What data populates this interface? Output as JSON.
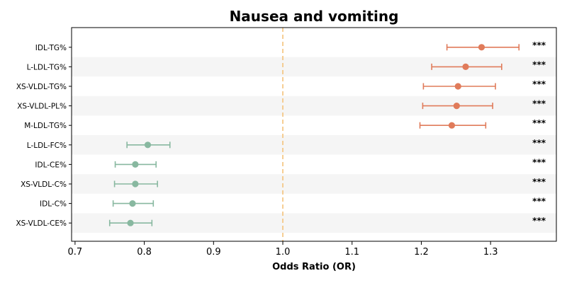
{
  "chart_data": {
    "type": "scatter",
    "title": "Nausea and vomiting",
    "xlabel": "Odds Ratio (OR)",
    "ylabel": "",
    "xlim": [
      0.695,
      1.395
    ],
    "xticks": [
      "0.7",
      "0.8",
      "0.9",
      "1.0",
      "1.1",
      "1.2",
      "1.3"
    ],
    "reference_line": 1.0,
    "grid": false,
    "colors": {
      "risk": "#e07b5a",
      "protective": "#88b8a0",
      "reference": "#f5c27a",
      "stripe": "#f5f5f5"
    },
    "rows": [
      {
        "label": "IDL-TG%",
        "or": 1.287,
        "lower": 1.237,
        "upper": 1.341,
        "sig": "***"
      },
      {
        "label": "L-LDL-TG%",
        "or": 1.264,
        "lower": 1.215,
        "upper": 1.316,
        "sig": "***"
      },
      {
        "label": "XS-VLDL-TG%",
        "or": 1.253,
        "lower": 1.203,
        "upper": 1.307,
        "sig": "***"
      },
      {
        "label": "XS-VLDL-PL%",
        "or": 1.251,
        "lower": 1.202,
        "upper": 1.303,
        "sig": "***"
      },
      {
        "label": "M-LDL-TG%",
        "or": 1.244,
        "lower": 1.198,
        "upper": 1.293,
        "sig": "***"
      },
      {
        "label": "L-LDL-FC%",
        "or": 0.805,
        "lower": 0.775,
        "upper": 0.837,
        "sig": "***"
      },
      {
        "label": "IDL-CE%",
        "or": 0.787,
        "lower": 0.758,
        "upper": 0.817,
        "sig": "***"
      },
      {
        "label": "XS-VLDL-C%",
        "or": 0.787,
        "lower": 0.757,
        "upper": 0.819,
        "sig": "***"
      },
      {
        "label": "IDL-C%",
        "or": 0.783,
        "lower": 0.755,
        "upper": 0.813,
        "sig": "***"
      },
      {
        "label": "XS-VLDL-CE%",
        "or": 0.78,
        "lower": 0.75,
        "upper": 0.811,
        "sig": "***"
      }
    ]
  }
}
